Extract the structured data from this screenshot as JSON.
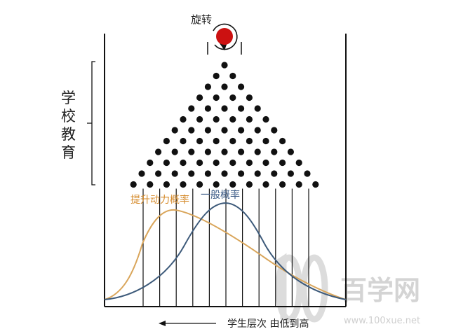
{
  "labels": {
    "rotate": "旋转",
    "school_education_chars": [
      "学",
      "校",
      "教",
      "育"
    ],
    "boosted_probability": "提升动力概率",
    "general_probability": "一般概率",
    "x_axis_caption": "学生层次 由低到高"
  },
  "watermark": {
    "text_cn": "百学网",
    "url": "www.100xue.net"
  },
  "peg_rows": [
    1,
    2,
    3,
    4,
    5,
    6,
    7,
    8,
    9,
    10,
    11,
    12
  ],
  "colors": {
    "ball": "#cc1111",
    "pegs": "#111111",
    "boosted_curve": "#d9a55a",
    "general_curve": "#3d5a7a",
    "boosted_label": "#d58a2a",
    "general_label": "#3b5a85",
    "watermark": "#d9d9d9"
  }
}
